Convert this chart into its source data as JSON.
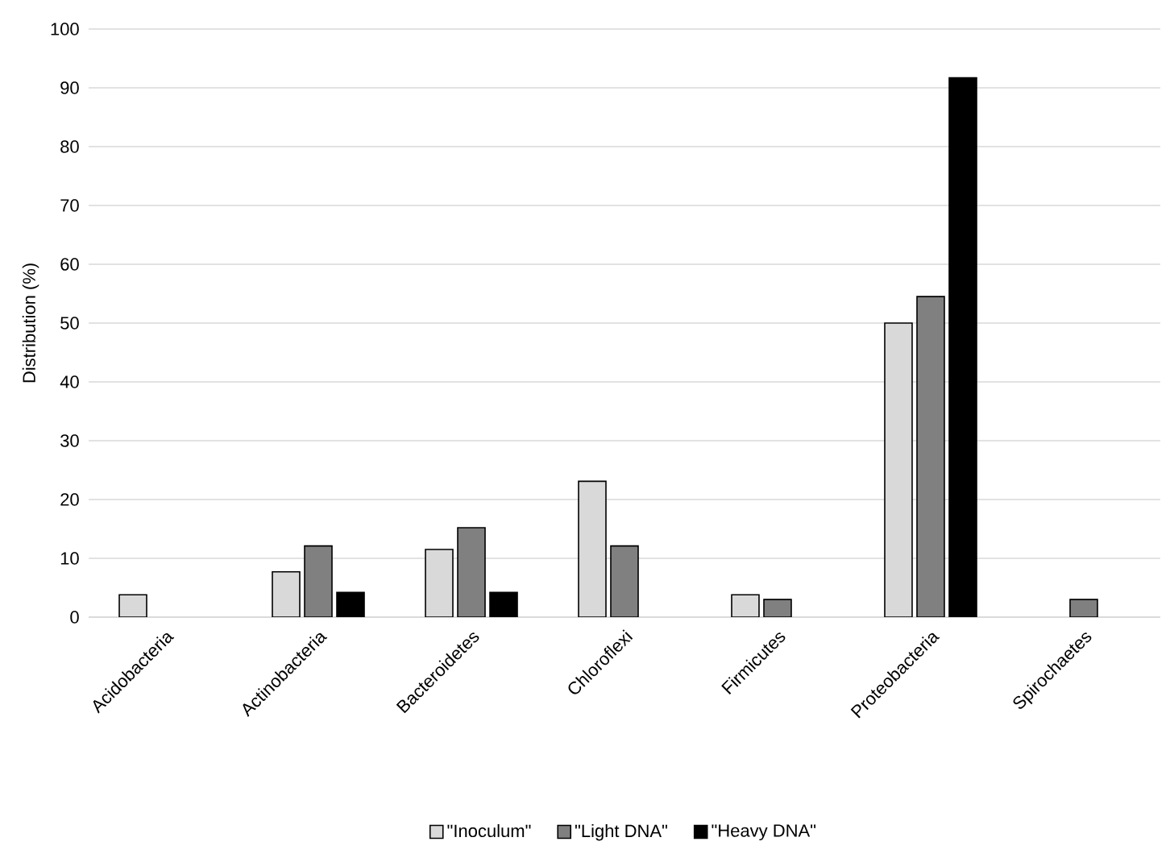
{
  "chart_data": {
    "type": "bar",
    "ylabel": "Distribution (%)",
    "categories": [
      "Acidobacteria",
      "Actinobacteria",
      "Bacteroidetes",
      "Chloroflexi",
      "Firmicutes",
      "Proteobacteria",
      "Spirochaetes"
    ],
    "series": [
      {
        "name": "\"Inoculum\"",
        "color": "#d9d9d9",
        "values": [
          3.8,
          7.7,
          11.5,
          23.1,
          3.8,
          50,
          null
        ]
      },
      {
        "name": "\"Light DNA\"",
        "color": "#808080",
        "values": [
          null,
          12.1,
          15.2,
          12.1,
          3,
          54.5,
          3
        ]
      },
      {
        "name": "\"Heavy DNA\"",
        "color": "#000000",
        "values": [
          null,
          4.2,
          4.2,
          null,
          null,
          91.7,
          null
        ]
      }
    ],
    "ylim": [
      0,
      100
    ],
    "yticks": [
      0,
      10,
      20,
      30,
      40,
      50,
      60,
      70,
      80,
      90,
      100
    ],
    "grid": "y",
    "legend": "bottom"
  }
}
